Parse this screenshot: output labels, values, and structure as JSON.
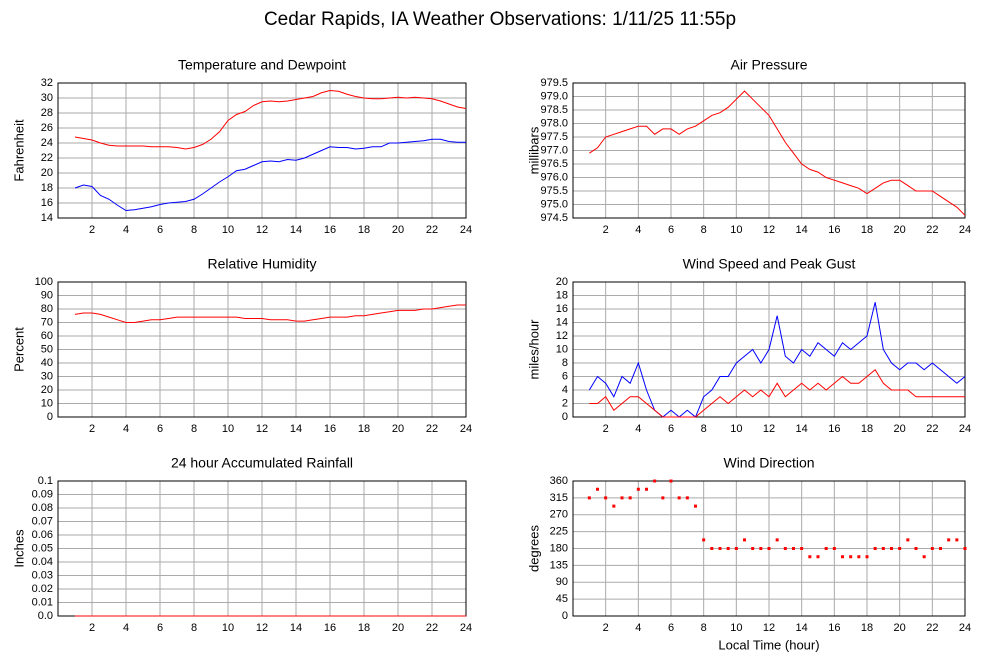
{
  "page_title": "Cedar Rapids, IA Weather Observations: 1/11/25 11:55p",
  "chart_data": [
    {
      "type": "line",
      "title": "Temperature and Dewpoint",
      "ylabel": "Fahrenheit",
      "x": [
        1,
        1.5,
        2,
        2.5,
        3,
        3.5,
        4,
        4.5,
        5,
        5.5,
        6,
        6.5,
        7,
        7.5,
        8,
        8.5,
        9,
        9.5,
        10,
        10.5,
        11,
        11.5,
        12,
        12.5,
        13,
        13.5,
        14,
        14.5,
        15,
        15.5,
        16,
        16.5,
        17,
        17.5,
        18,
        18.5,
        19,
        19.5,
        20,
        20.5,
        21,
        21.5,
        22,
        22.5,
        23,
        23.5,
        24
      ],
      "series": [
        {
          "color": "#ff0000",
          "values": [
            24.8,
            24.6,
            24.4,
            24.0,
            23.7,
            23.6,
            23.6,
            23.6,
            23.6,
            23.5,
            23.5,
            23.5,
            23.4,
            23.2,
            23.4,
            23.8,
            24.5,
            25.5,
            27,
            27.8,
            28.2,
            29,
            29.5,
            29.6,
            29.5,
            29.6,
            29.8,
            30,
            30.2,
            30.7,
            31,
            30.9,
            30.5,
            30.2,
            30,
            29.9,
            29.9,
            30,
            30.1,
            30,
            30.1,
            30,
            29.9,
            29.6,
            29.2,
            28.8,
            28.6
          ]
        },
        {
          "color": "#0000ff",
          "values": [
            18,
            18.4,
            18.2,
            17,
            16.5,
            15.7,
            15,
            15.1,
            15.3,
            15.5,
            15.8,
            16,
            16.1,
            16.2,
            16.5,
            17.2,
            18,
            18.8,
            19.5,
            20.3,
            20.5,
            21,
            21.5,
            21.6,
            21.5,
            21.8,
            21.7,
            22,
            22.5,
            23,
            23.5,
            23.4,
            23.4,
            23.2,
            23.3,
            23.5,
            23.5,
            24,
            24,
            24.1,
            24.2,
            24.3,
            24.5,
            24.5,
            24.2,
            24.1,
            24.1
          ]
        }
      ],
      "xlim": [
        0,
        24
      ],
      "xticks": [
        2,
        4,
        6,
        8,
        10,
        12,
        14,
        16,
        18,
        20,
        22,
        24
      ],
      "ylim": [
        14,
        32
      ],
      "yticks": [
        14,
        16,
        18,
        20,
        22,
        24,
        26,
        28,
        30,
        32
      ],
      "grid": true
    },
    {
      "type": "line",
      "title": "Air Pressure",
      "ylabel": "millibars",
      "x": [
        1,
        1.5,
        2,
        2.5,
        3,
        3.5,
        4,
        4.5,
        5,
        5.5,
        6,
        6.5,
        7,
        7.5,
        8,
        8.5,
        9,
        9.5,
        10,
        10.5,
        11,
        11.5,
        12,
        12.5,
        13,
        13.5,
        14,
        14.5,
        15,
        15.5,
        16,
        16.5,
        17,
        17.5,
        18,
        18.5,
        19,
        19.5,
        20,
        20.5,
        21,
        21.5,
        22,
        22.5,
        23,
        23.5,
        24
      ],
      "series": [
        {
          "color": "#ff0000",
          "values": [
            976.9,
            977.1,
            977.5,
            977.6,
            977.7,
            977.8,
            977.9,
            977.9,
            977.6,
            977.8,
            977.8,
            977.6,
            977.8,
            977.9,
            978.1,
            978.3,
            978.4,
            978.6,
            978.9,
            979.2,
            978.9,
            978.6,
            978.3,
            977.8,
            977.3,
            976.9,
            976.5,
            976.3,
            976.2,
            976,
            975.9,
            975.8,
            975.7,
            975.6,
            975.4,
            975.6,
            975.8,
            975.9,
            975.9,
            975.7,
            975.5,
            975.5,
            975.5,
            975.3,
            975.1,
            974.9,
            974.6
          ]
        }
      ],
      "xlim": [
        0,
        24
      ],
      "xticks": [
        2,
        4,
        6,
        8,
        10,
        12,
        14,
        16,
        18,
        20,
        22,
        24
      ],
      "ylim": [
        974.5,
        979.5
      ],
      "yticks": [
        974.5,
        {
          "value": 975,
          "label": "975.0"
        },
        975.5,
        {
          "value": 976,
          "label": "976.0"
        },
        976.5,
        {
          "value": 977,
          "label": "977.0"
        },
        977.5,
        {
          "value": 978,
          "label": "978.0"
        },
        978.5,
        {
          "value": 979,
          "label": "979.0"
        },
        979.5
      ],
      "grid": true
    },
    {
      "type": "line",
      "title": "Relative Humidity",
      "ylabel": "Percent",
      "x": [
        1,
        1.5,
        2,
        2.5,
        3,
        3.5,
        4,
        4.5,
        5,
        5.5,
        6,
        6.5,
        7,
        7.5,
        8,
        8.5,
        9,
        9.5,
        10,
        10.5,
        11,
        11.5,
        12,
        12.5,
        13,
        13.5,
        14,
        14.5,
        15,
        15.5,
        16,
        16.5,
        17,
        17.5,
        18,
        18.5,
        19,
        19.5,
        20,
        20.5,
        21,
        21.5,
        22,
        22.5,
        23,
        23.5,
        24
      ],
      "series": [
        {
          "color": "#ff0000",
          "values": [
            76,
            77,
            77,
            76,
            74,
            72,
            70,
            70,
            71,
            72,
            72,
            73,
            74,
            74,
            74,
            74,
            74,
            74,
            74,
            74,
            73,
            73,
            73,
            72,
            72,
            72,
            71,
            71,
            72,
            73,
            74,
            74,
            74,
            75,
            75,
            76,
            77,
            78,
            79,
            79,
            79,
            80,
            80,
            81,
            82,
            83,
            83
          ]
        }
      ],
      "xlim": [
        0,
        24
      ],
      "xticks": [
        2,
        4,
        6,
        8,
        10,
        12,
        14,
        16,
        18,
        20,
        22,
        24
      ],
      "ylim": [
        0,
        100
      ],
      "yticks": [
        0,
        10,
        20,
        30,
        40,
        50,
        60,
        70,
        80,
        90,
        100
      ],
      "grid": true
    },
    {
      "type": "line",
      "title": "Wind Speed and Peak Gust",
      "ylabel": "miles/hour",
      "x": [
        1,
        1.5,
        2,
        2.5,
        3,
        3.5,
        4,
        4.5,
        5,
        5.5,
        6,
        6.5,
        7,
        7.5,
        8,
        8.5,
        9,
        9.5,
        10,
        10.5,
        11,
        11.5,
        12,
        12.5,
        13,
        13.5,
        14,
        14.5,
        15,
        15.5,
        16,
        16.5,
        17,
        17.5,
        18,
        18.5,
        19,
        19.5,
        20,
        20.5,
        21,
        21.5,
        22,
        22.5,
        23,
        23.5,
        24
      ],
      "series": [
        {
          "color": "#0000ff",
          "values": [
            4,
            6,
            5,
            3,
            6,
            5,
            8,
            4,
            1,
            0,
            1,
            0,
            1,
            0,
            3,
            4,
            6,
            6,
            8,
            9,
            10,
            8,
            10,
            15,
            9,
            8,
            10,
            9,
            11,
            10,
            9,
            11,
            10,
            11,
            12,
            17,
            10,
            8,
            7,
            8,
            8,
            7,
            8,
            7,
            6,
            5,
            6
          ]
        },
        {
          "color": "#ff0000",
          "values": [
            2,
            2,
            3,
            1,
            2,
            3,
            3,
            2,
            1,
            0,
            0,
            0,
            0,
            0,
            1,
            2,
            3,
            2,
            3,
            4,
            3,
            4,
            3,
            5,
            3,
            4,
            5,
            4,
            5,
            4,
            5,
            6,
            5,
            5,
            6,
            7,
            5,
            4,
            4,
            4,
            3,
            3,
            3,
            3,
            3,
            3,
            3
          ]
        }
      ],
      "xlim": [
        0,
        24
      ],
      "xticks": [
        2,
        4,
        6,
        8,
        10,
        12,
        14,
        16,
        18,
        20,
        22,
        24
      ],
      "ylim": [
        0,
        20
      ],
      "yticks": [
        0,
        2,
        4,
        6,
        8,
        10,
        12,
        14,
        16,
        18,
        20
      ],
      "grid": true
    },
    {
      "type": "line",
      "title": "24 hour Accumulated Rainfall",
      "ylabel": "Inches",
      "x": [
        1,
        24
      ],
      "series": [
        {
          "color": "#ff0000",
          "values": [
            0,
            0
          ]
        }
      ],
      "xlim": [
        0,
        24
      ],
      "xticks": [
        2,
        4,
        6,
        8,
        10,
        12,
        14,
        16,
        18,
        20,
        22,
        24
      ],
      "ylim": [
        0,
        0.1
      ],
      "yticks": [
        {
          "value": 0,
          "label": "0.0"
        },
        0.01,
        0.02,
        0.03,
        0.04,
        0.05,
        0.06,
        0.07,
        0.08,
        0.09,
        0.1
      ],
      "grid": true
    },
    {
      "type": "scatter",
      "title": "Wind Direction",
      "ylabel": "degrees",
      "xlabel": "Local Time (hour)",
      "x": [
        1,
        1.5,
        2,
        2.5,
        3,
        3.5,
        4,
        4.5,
        5,
        5.5,
        6,
        6.5,
        7,
        7.5,
        8,
        8.5,
        9,
        9.5,
        10,
        10.5,
        11,
        11.5,
        12,
        12.5,
        13,
        13.5,
        14,
        14.5,
        15,
        15.5,
        16,
        16.5,
        17,
        17.5,
        18,
        18.5,
        19,
        19.5,
        20,
        20.5,
        21,
        21.5,
        22,
        22.5,
        23,
        23.5,
        24
      ],
      "series": [
        {
          "color": "#ff0000",
          "values": [
            315,
            338,
            315,
            293,
            315,
            315,
            338,
            338,
            360,
            315,
            360,
            315,
            315,
            293,
            203,
            180,
            180,
            180,
            180,
            203,
            180,
            180,
            180,
            203,
            180,
            180,
            180,
            158,
            158,
            180,
            180,
            158,
            158,
            158,
            158,
            180,
            180,
            180,
            180,
            203,
            180,
            158,
            180,
            180,
            203,
            203,
            180
          ]
        }
      ],
      "xlim": [
        0,
        24
      ],
      "xticks": [
        2,
        4,
        6,
        8,
        10,
        12,
        14,
        16,
        18,
        20,
        22,
        24
      ],
      "ylim": [
        0,
        360
      ],
      "yticks": [
        0,
        45,
        90,
        135,
        180,
        225,
        270,
        315,
        360
      ],
      "grid": true
    }
  ]
}
